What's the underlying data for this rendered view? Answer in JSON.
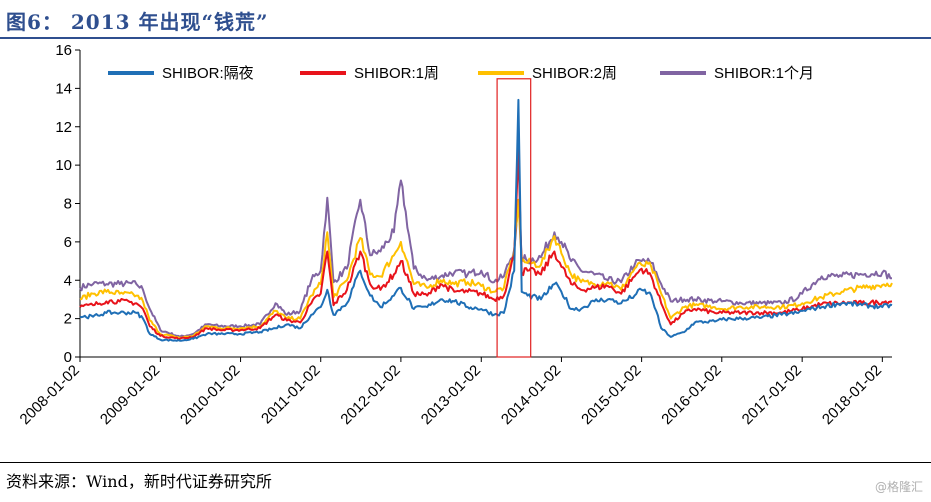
{
  "title": "图6： 2013 年出现“钱荒”",
  "source": "资料来源：Wind，新时代证券研究所",
  "watermark": "@格隆汇",
  "chart_data": {
    "type": "line",
    "xlabel": "",
    "ylabel": "",
    "ylim": [
      0,
      16
    ],
    "yticks": [
      0,
      2,
      4,
      6,
      8,
      10,
      12,
      14,
      16
    ],
    "xlim": [
      "2008-01-02",
      "2018-02-15"
    ],
    "xticks": [
      "2008-01-02",
      "2009-01-02",
      "2010-01-02",
      "2011-01-02",
      "2012-01-02",
      "2013-01-02",
      "2014-01-02",
      "2015-01-02",
      "2016-01-02",
      "2017-01-02",
      "2018-01-02"
    ],
    "grid": false,
    "legend_position": "top",
    "highlight_box": {
      "from": "2013-03-15",
      "to": "2013-08-15",
      "ymin": 0,
      "ymax": 14.5,
      "color": "#e02020"
    },
    "series": [
      {
        "name": "SHIBOR:隔夜",
        "color": "#1f6fb6",
        "points": [
          [
            "2008-01-02",
            2.1
          ],
          [
            "2008-03-01",
            2.1
          ],
          [
            "2008-05-01",
            2.3
          ],
          [
            "2008-07-01",
            2.3
          ],
          [
            "2008-09-15",
            2.3
          ],
          [
            "2008-10-15",
            2.0
          ],
          [
            "2008-11-15",
            1.2
          ],
          [
            "2009-01-02",
            0.9
          ],
          [
            "2009-04-01",
            0.85
          ],
          [
            "2009-06-01",
            0.95
          ],
          [
            "2009-08-01",
            1.2
          ],
          [
            "2009-10-01",
            1.2
          ],
          [
            "2010-01-02",
            1.2
          ],
          [
            "2010-04-01",
            1.3
          ],
          [
            "2010-06-10",
            1.5
          ],
          [
            "2010-08-01",
            1.7
          ],
          [
            "2010-10-01",
            1.5
          ],
          [
            "2010-11-20",
            2.2
          ],
          [
            "2011-01-02",
            2.6
          ],
          [
            "2011-02-01",
            3.5
          ],
          [
            "2011-03-01",
            2.2
          ],
          [
            "2011-05-01",
            2.8
          ],
          [
            "2011-07-01",
            4.5
          ],
          [
            "2011-08-15",
            3.2
          ],
          [
            "2011-10-01",
            2.6
          ],
          [
            "2011-12-01",
            3.2
          ],
          [
            "2012-01-02",
            3.6
          ],
          [
            "2012-03-01",
            2.5
          ],
          [
            "2012-05-01",
            2.6
          ],
          [
            "2012-07-01",
            3.0
          ],
          [
            "2012-09-01",
            2.9
          ],
          [
            "2012-11-01",
            2.6
          ],
          [
            "2013-01-02",
            2.5
          ],
          [
            "2013-03-01",
            2.2
          ],
          [
            "2013-04-15",
            2.3
          ],
          [
            "2013-06-01",
            4.5
          ],
          [
            "2013-06-20",
            13.4
          ],
          [
            "2013-07-05",
            3.4
          ],
          [
            "2013-08-01",
            3.2
          ],
          [
            "2013-10-01",
            3.0
          ],
          [
            "2013-12-01",
            3.8
          ],
          [
            "2014-01-02",
            3.4
          ],
          [
            "2014-02-15",
            2.5
          ],
          [
            "2014-04-01",
            2.5
          ],
          [
            "2014-06-01",
            2.9
          ],
          [
            "2014-08-01",
            3.0
          ],
          [
            "2014-10-01",
            2.8
          ],
          [
            "2014-12-01",
            3.2
          ],
          [
            "2015-01-02",
            3.5
          ],
          [
            "2015-02-15",
            3.2
          ],
          [
            "2015-04-01",
            1.5
          ],
          [
            "2015-05-15",
            1.05
          ],
          [
            "2015-07-15",
            1.3
          ],
          [
            "2015-09-01",
            1.8
          ],
          [
            "2015-12-01",
            1.85
          ],
          [
            "2016-01-02",
            1.95
          ],
          [
            "2016-04-01",
            2.0
          ],
          [
            "2016-07-01",
            2.05
          ],
          [
            "2016-10-01",
            2.2
          ],
          [
            "2016-12-15",
            2.3
          ],
          [
            "2017-01-02",
            2.4
          ],
          [
            "2017-04-01",
            2.6
          ],
          [
            "2017-07-01",
            2.8
          ],
          [
            "2017-10-01",
            2.7
          ],
          [
            "2018-01-02",
            2.6
          ],
          [
            "2018-02-15",
            2.7
          ]
        ]
      },
      {
        "name": "SHIBOR:1周",
        "color": "#e8131b",
        "points": [
          [
            "2008-01-02",
            2.6
          ],
          [
            "2008-03-01",
            2.7
          ],
          [
            "2008-05-01",
            2.9
          ],
          [
            "2008-07-01",
            2.9
          ],
          [
            "2008-09-15",
            2.8
          ],
          [
            "2008-10-15",
            2.5
          ],
          [
            "2008-11-15",
            1.6
          ],
          [
            "2009-01-02",
            1.1
          ],
          [
            "2009-04-01",
            0.95
          ],
          [
            "2009-06-01",
            1.05
          ],
          [
            "2009-08-01",
            1.5
          ],
          [
            "2009-10-01",
            1.4
          ],
          [
            "2010-01-02",
            1.4
          ],
          [
            "2010-04-01",
            1.5
          ],
          [
            "2010-06-10",
            2.2
          ],
          [
            "2010-08-01",
            1.9
          ],
          [
            "2010-10-01",
            1.8
          ],
          [
            "2010-11-20",
            2.8
          ],
          [
            "2011-01-02",
            3.3
          ],
          [
            "2011-02-01",
            5.5
          ],
          [
            "2011-03-01",
            2.7
          ],
          [
            "2011-05-01",
            3.5
          ],
          [
            "2011-07-01",
            5.5
          ],
          [
            "2011-08-15",
            3.8
          ],
          [
            "2011-10-01",
            3.5
          ],
          [
            "2011-12-01",
            4.3
          ],
          [
            "2012-01-02",
            5.0
          ],
          [
            "2012-03-01",
            3.3
          ],
          [
            "2012-05-01",
            3.2
          ],
          [
            "2012-07-01",
            3.8
          ],
          [
            "2012-09-01",
            3.4
          ],
          [
            "2012-11-01",
            3.4
          ],
          [
            "2013-01-02",
            3.3
          ],
          [
            "2013-03-01",
            3.0
          ],
          [
            "2013-04-15",
            3.2
          ],
          [
            "2013-06-01",
            5.3
          ],
          [
            "2013-06-20",
            11.0
          ],
          [
            "2013-07-05",
            4.4
          ],
          [
            "2013-08-01",
            4.5
          ],
          [
            "2013-10-01",
            4.3
          ],
          [
            "2013-12-01",
            5.5
          ],
          [
            "2014-01-02",
            4.7
          ],
          [
            "2014-02-15",
            3.8
          ],
          [
            "2014-04-01",
            3.5
          ],
          [
            "2014-06-01",
            3.6
          ],
          [
            "2014-08-01",
            3.7
          ],
          [
            "2014-10-01",
            3.3
          ],
          [
            "2014-12-01",
            4.2
          ],
          [
            "2015-01-02",
            4.6
          ],
          [
            "2015-02-15",
            4.2
          ],
          [
            "2015-04-01",
            2.8
          ],
          [
            "2015-05-15",
            1.7
          ],
          [
            "2015-07-15",
            2.3
          ],
          [
            "2015-09-01",
            2.5
          ],
          [
            "2015-12-01",
            2.3
          ],
          [
            "2016-01-02",
            2.3
          ],
          [
            "2016-04-01",
            2.3
          ],
          [
            "2016-07-01",
            2.3
          ],
          [
            "2016-10-01",
            2.3
          ],
          [
            "2016-12-15",
            2.45
          ],
          [
            "2017-01-02",
            2.5
          ],
          [
            "2017-04-01",
            2.75
          ],
          [
            "2017-07-01",
            2.8
          ],
          [
            "2017-10-01",
            2.8
          ],
          [
            "2018-01-02",
            2.85
          ],
          [
            "2018-02-15",
            2.9
          ]
        ]
      },
      {
        "name": "SHIBOR:2周",
        "color": "#ffc000",
        "points": [
          [
            "2008-01-02",
            3.0
          ],
          [
            "2008-03-01",
            3.3
          ],
          [
            "2008-05-01",
            3.4
          ],
          [
            "2008-07-01",
            3.3
          ],
          [
            "2008-09-15",
            3.2
          ],
          [
            "2008-10-15",
            2.9
          ],
          [
            "2008-11-15",
            1.9
          ],
          [
            "2009-01-02",
            1.2
          ],
          [
            "2009-04-01",
            1.0
          ],
          [
            "2009-06-01",
            1.1
          ],
          [
            "2009-08-01",
            1.6
          ],
          [
            "2009-10-01",
            1.5
          ],
          [
            "2010-01-02",
            1.5
          ],
          [
            "2010-04-01",
            1.6
          ],
          [
            "2010-06-10",
            2.4
          ],
          [
            "2010-08-01",
            2.0
          ],
          [
            "2010-10-01",
            2.0
          ],
          [
            "2010-11-20",
            3.2
          ],
          [
            "2011-01-02",
            3.8
          ],
          [
            "2011-02-01",
            6.5
          ],
          [
            "2011-03-01",
            3.1
          ],
          [
            "2011-05-01",
            4.0
          ],
          [
            "2011-07-01",
            6.2
          ],
          [
            "2011-08-15",
            4.3
          ],
          [
            "2011-10-01",
            4.2
          ],
          [
            "2011-12-01",
            5.3
          ],
          [
            "2012-01-02",
            6.0
          ],
          [
            "2012-03-01",
            3.8
          ],
          [
            "2012-05-01",
            3.6
          ],
          [
            "2012-07-01",
            4.0
          ],
          [
            "2012-09-01",
            3.8
          ],
          [
            "2012-11-01",
            3.9
          ],
          [
            "2013-01-02",
            3.7
          ],
          [
            "2013-03-01",
            3.4
          ],
          [
            "2013-04-15",
            3.6
          ],
          [
            "2013-06-01",
            5.5
          ],
          [
            "2013-06-20",
            8.2
          ],
          [
            "2013-07-05",
            5.0
          ],
          [
            "2013-08-01",
            4.9
          ],
          [
            "2013-10-01",
            4.8
          ],
          [
            "2013-12-01",
            6.3
          ],
          [
            "2014-01-02",
            5.4
          ],
          [
            "2014-02-15",
            4.3
          ],
          [
            "2014-04-01",
            3.9
          ],
          [
            "2014-06-01",
            3.8
          ],
          [
            "2014-08-01",
            3.9
          ],
          [
            "2014-10-01",
            3.5
          ],
          [
            "2014-12-01",
            4.6
          ],
          [
            "2015-01-02",
            4.8
          ],
          [
            "2015-02-15",
            4.7
          ],
          [
            "2015-04-01",
            3.3
          ],
          [
            "2015-05-15",
            2.0
          ],
          [
            "2015-07-15",
            2.6
          ],
          [
            "2015-09-01",
            2.7
          ],
          [
            "2015-12-01",
            2.6
          ],
          [
            "2016-01-02",
            2.5
          ],
          [
            "2016-04-01",
            2.6
          ],
          [
            "2016-07-01",
            2.6
          ],
          [
            "2016-10-01",
            2.6
          ],
          [
            "2016-12-15",
            2.7
          ],
          [
            "2017-01-02",
            2.8
          ],
          [
            "2017-04-01",
            3.1
          ],
          [
            "2017-07-01",
            3.4
          ],
          [
            "2017-10-01",
            3.6
          ],
          [
            "2018-01-02",
            3.75
          ],
          [
            "2018-02-15",
            3.85
          ]
        ]
      },
      {
        "name": "SHIBOR:1个月",
        "color": "#8064a2",
        "points": [
          [
            "2008-01-02",
            3.6
          ],
          [
            "2008-03-01",
            3.8
          ],
          [
            "2008-05-01",
            3.8
          ],
          [
            "2008-07-01",
            3.8
          ],
          [
            "2008-09-15",
            3.8
          ],
          [
            "2008-10-15",
            3.5
          ],
          [
            "2008-11-15",
            2.5
          ],
          [
            "2009-01-02",
            1.4
          ],
          [
            "2009-04-01",
            1.05
          ],
          [
            "2009-06-01",
            1.2
          ],
          [
            "2009-08-01",
            1.7
          ],
          [
            "2009-10-01",
            1.6
          ],
          [
            "2010-01-02",
            1.6
          ],
          [
            "2010-04-01",
            1.7
          ],
          [
            "2010-06-10",
            2.8
          ],
          [
            "2010-08-01",
            2.2
          ],
          [
            "2010-10-01",
            2.4
          ],
          [
            "2010-11-20",
            4.0
          ],
          [
            "2011-01-02",
            4.5
          ],
          [
            "2011-02-01",
            8.3
          ],
          [
            "2011-03-01",
            3.9
          ],
          [
            "2011-05-01",
            4.6
          ],
          [
            "2011-07-01",
            8.2
          ],
          [
            "2011-08-15",
            5.3
          ],
          [
            "2011-10-01",
            5.5
          ],
          [
            "2011-12-01",
            6.5
          ],
          [
            "2012-01-02",
            9.2
          ],
          [
            "2012-03-01",
            4.6
          ],
          [
            "2012-05-01",
            4.0
          ],
          [
            "2012-07-01",
            4.2
          ],
          [
            "2012-09-01",
            4.4
          ],
          [
            "2012-11-01",
            4.3
          ],
          [
            "2013-01-02",
            4.5
          ],
          [
            "2013-03-01",
            3.9
          ],
          [
            "2013-04-15",
            4.2
          ],
          [
            "2013-06-01",
            5.6
          ],
          [
            "2013-06-20",
            8.0
          ],
          [
            "2013-07-05",
            5.2
          ],
          [
            "2013-08-01",
            5.0
          ],
          [
            "2013-10-01",
            5.2
          ],
          [
            "2013-12-01",
            6.5
          ],
          [
            "2014-01-02",
            6.0
          ],
          [
            "2014-02-15",
            5.0
          ],
          [
            "2014-04-01",
            4.5
          ],
          [
            "2014-06-01",
            4.3
          ],
          [
            "2014-08-01",
            4.0
          ],
          [
            "2014-10-01",
            3.9
          ],
          [
            "2014-12-01",
            4.8
          ],
          [
            "2015-01-02",
            5.0
          ],
          [
            "2015-02-15",
            4.9
          ],
          [
            "2015-04-01",
            3.8
          ],
          [
            "2015-05-15",
            2.9
          ],
          [
            "2015-07-15",
            3.0
          ],
          [
            "2015-09-01",
            3.0
          ],
          [
            "2015-12-01",
            2.9
          ],
          [
            "2016-01-02",
            2.9
          ],
          [
            "2016-04-01",
            2.8
          ],
          [
            "2016-07-01",
            2.8
          ],
          [
            "2016-10-01",
            2.8
          ],
          [
            "2016-12-15",
            3.1
          ],
          [
            "2017-01-02",
            3.3
          ],
          [
            "2017-04-01",
            4.2
          ],
          [
            "2017-07-01",
            4.2
          ],
          [
            "2017-10-01",
            4.3
          ],
          [
            "2018-01-02",
            4.4
          ],
          [
            "2018-02-15",
            4.1
          ]
        ]
      }
    ]
  }
}
